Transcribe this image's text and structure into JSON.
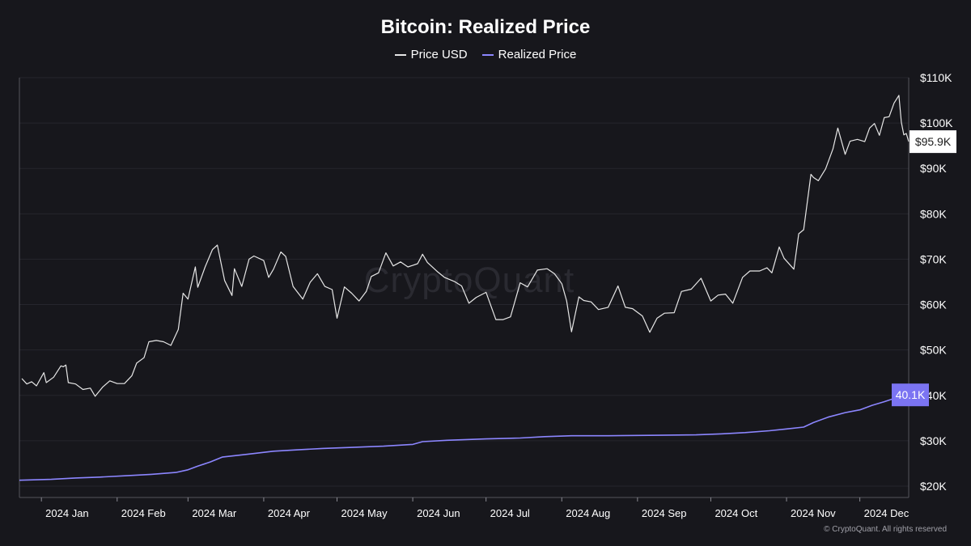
{
  "colors": {
    "background": "#17171c",
    "grid": "#26262d",
    "price_line": "#e6e6e6",
    "realized_line": "#8c86ff",
    "realized_badge": "#7b74f2",
    "price_badge": "#ffffff"
  },
  "watermark": "CryptoQuant",
  "copyright": "© CryptoQuant. All rights reserved",
  "chart_data": {
    "type": "line",
    "title": "Bitcoin: Realized Price",
    "xlabel": "",
    "ylabel": "",
    "x_range": [
      "2023-12-23",
      "2024-12-21"
    ],
    "ylim": [
      17500,
      110000
    ],
    "y_ticks": [
      20000,
      30000,
      40000,
      50000,
      60000,
      70000,
      80000,
      90000,
      100000,
      110000
    ],
    "y_tick_labels": [
      "$20K",
      "$30K",
      "$40K",
      "$50K",
      "$60K",
      "$70K",
      "$80K",
      "$90K",
      "$100K",
      "$110K"
    ],
    "x_ticks": [
      "2024-01-01",
      "2024-02-01",
      "2024-03-01",
      "2024-04-01",
      "2024-05-01",
      "2024-06-01",
      "2024-07-01",
      "2024-08-01",
      "2024-09-01",
      "2024-10-01",
      "2024-11-01",
      "2024-12-01"
    ],
    "x_tick_labels": [
      "2024 Jan",
      "2024 Feb",
      "2024 Mar",
      "2024 Apr",
      "2024 May",
      "2024 Jun",
      "2024 Jul",
      "2024 Aug",
      "2024 Sep",
      "2024 Oct",
      "2024 Nov",
      "2024 Dec"
    ],
    "grid": true,
    "legend": "top-center",
    "series": [
      {
        "name": "Price USD",
        "color": "#e6e6e6",
        "last_value_label": "$95.9K",
        "points": [
          [
            "2023-12-24",
            43700
          ],
          [
            "2023-12-26",
            42500
          ],
          [
            "2023-12-28",
            43000
          ],
          [
            "2023-12-30",
            42100
          ],
          [
            "2024-01-02",
            45000
          ],
          [
            "2024-01-03",
            42800
          ],
          [
            "2024-01-06",
            44000
          ],
          [
            "2024-01-09",
            46500
          ],
          [
            "2024-01-10",
            46300
          ],
          [
            "2024-01-11",
            46700
          ],
          [
            "2024-01-12",
            42800
          ],
          [
            "2024-01-15",
            42500
          ],
          [
            "2024-01-18",
            41300
          ],
          [
            "2024-01-21",
            41600
          ],
          [
            "2024-01-23",
            39800
          ],
          [
            "2024-01-26",
            41800
          ],
          [
            "2024-01-29",
            43200
          ],
          [
            "2024-02-01",
            42600
          ],
          [
            "2024-02-04",
            42600
          ],
          [
            "2024-02-07",
            44300
          ],
          [
            "2024-02-09",
            47100
          ],
          [
            "2024-02-12",
            48300
          ],
          [
            "2024-02-14",
            51800
          ],
          [
            "2024-02-17",
            52100
          ],
          [
            "2024-02-20",
            51800
          ],
          [
            "2024-02-23",
            51000
          ],
          [
            "2024-02-26",
            54500
          ],
          [
            "2024-02-28",
            62500
          ],
          [
            "2024-03-01",
            61200
          ],
          [
            "2024-03-04",
            68300
          ],
          [
            "2024-03-05",
            63800
          ],
          [
            "2024-03-08",
            68300
          ],
          [
            "2024-03-11",
            72100
          ],
          [
            "2024-03-13",
            73100
          ],
          [
            "2024-03-16",
            65300
          ],
          [
            "2024-03-19",
            62000
          ],
          [
            "2024-03-20",
            67900
          ],
          [
            "2024-03-23",
            64000
          ],
          [
            "2024-03-26",
            70000
          ],
          [
            "2024-03-28",
            70700
          ],
          [
            "2024-04-01",
            69700
          ],
          [
            "2024-04-03",
            66000
          ],
          [
            "2024-04-05",
            67800
          ],
          [
            "2024-04-08",
            71600
          ],
          [
            "2024-04-10",
            70600
          ],
          [
            "2024-04-13",
            64000
          ],
          [
            "2024-04-17",
            61200
          ],
          [
            "2024-04-20",
            64900
          ],
          [
            "2024-04-23",
            66800
          ],
          [
            "2024-04-26",
            64000
          ],
          [
            "2024-04-29",
            63300
          ],
          [
            "2024-05-01",
            57000
          ],
          [
            "2024-05-04",
            63900
          ],
          [
            "2024-05-07",
            62500
          ],
          [
            "2024-05-10",
            60800
          ],
          [
            "2024-05-13",
            62900
          ],
          [
            "2024-05-15",
            66200
          ],
          [
            "2024-05-18",
            67000
          ],
          [
            "2024-05-21",
            71400
          ],
          [
            "2024-05-24",
            68500
          ],
          [
            "2024-05-27",
            69400
          ],
          [
            "2024-05-30",
            68300
          ],
          [
            "2024-06-03",
            69000
          ],
          [
            "2024-06-05",
            71100
          ],
          [
            "2024-06-07",
            69300
          ],
          [
            "2024-06-11",
            67300
          ],
          [
            "2024-06-14",
            66000
          ],
          [
            "2024-06-18",
            65100
          ],
          [
            "2024-06-21",
            64100
          ],
          [
            "2024-06-24",
            60300
          ],
          [
            "2024-06-27",
            61600
          ],
          [
            "2024-07-01",
            62700
          ],
          [
            "2024-07-05",
            56700
          ],
          [
            "2024-07-08",
            56700
          ],
          [
            "2024-07-11",
            57300
          ],
          [
            "2024-07-15",
            64800
          ],
          [
            "2024-07-18",
            63900
          ],
          [
            "2024-07-22",
            67600
          ],
          [
            "2024-07-26",
            67900
          ],
          [
            "2024-07-29",
            66800
          ],
          [
            "2024-08-01",
            64600
          ],
          [
            "2024-08-03",
            60800
          ],
          [
            "2024-08-05",
            54000
          ],
          [
            "2024-08-08",
            61700
          ],
          [
            "2024-08-10",
            60900
          ],
          [
            "2024-08-13",
            60600
          ],
          [
            "2024-08-16",
            58900
          ],
          [
            "2024-08-20",
            59400
          ],
          [
            "2024-08-24",
            64100
          ],
          [
            "2024-08-27",
            59400
          ],
          [
            "2024-08-30",
            59100
          ],
          [
            "2024-09-03",
            57500
          ],
          [
            "2024-09-06",
            53900
          ],
          [
            "2024-09-09",
            57000
          ],
          [
            "2024-09-12",
            58100
          ],
          [
            "2024-09-16",
            58200
          ],
          [
            "2024-09-19",
            62900
          ],
          [
            "2024-09-23",
            63400
          ],
          [
            "2024-09-27",
            65800
          ],
          [
            "2024-10-01",
            60800
          ],
          [
            "2024-10-04",
            62100
          ],
          [
            "2024-10-07",
            62300
          ],
          [
            "2024-10-10",
            60300
          ],
          [
            "2024-10-14",
            66000
          ],
          [
            "2024-10-17",
            67400
          ],
          [
            "2024-10-21",
            67400
          ],
          [
            "2024-10-24",
            68100
          ],
          [
            "2024-10-26",
            67000
          ],
          [
            "2024-10-29",
            72700
          ],
          [
            "2024-10-31",
            70200
          ],
          [
            "2024-11-04",
            67800
          ],
          [
            "2024-11-06",
            75600
          ],
          [
            "2024-11-08",
            76500
          ],
          [
            "2024-11-11",
            88700
          ],
          [
            "2024-11-12",
            88000
          ],
          [
            "2024-11-14",
            87300
          ],
          [
            "2024-11-17",
            89900
          ],
          [
            "2024-11-20",
            94300
          ],
          [
            "2024-11-22",
            98900
          ],
          [
            "2024-11-25",
            93100
          ],
          [
            "2024-11-27",
            96000
          ],
          [
            "2024-11-30",
            96400
          ],
          [
            "2024-12-03",
            95900
          ],
          [
            "2024-12-05",
            98900
          ],
          [
            "2024-12-07",
            99900
          ],
          [
            "2024-12-09",
            97300
          ],
          [
            "2024-12-11",
            101200
          ],
          [
            "2024-12-13",
            101400
          ],
          [
            "2024-12-15",
            104400
          ],
          [
            "2024-12-17",
            106100
          ],
          [
            "2024-12-18",
            100200
          ],
          [
            "2024-12-19",
            97400
          ],
          [
            "2024-12-20",
            97700
          ],
          [
            "2024-12-21",
            95900
          ]
        ]
      },
      {
        "name": "Realized Price",
        "color": "#8c86ff",
        "last_value_label": "40.1K",
        "points": [
          [
            "2023-12-23",
            21300
          ],
          [
            "2024-01-05",
            21500
          ],
          [
            "2024-01-15",
            21800
          ],
          [
            "2024-01-25",
            22000
          ],
          [
            "2024-02-05",
            22300
          ],
          [
            "2024-02-15",
            22600
          ],
          [
            "2024-02-25",
            23000
          ],
          [
            "2024-03-01",
            23600
          ],
          [
            "2024-03-05",
            24400
          ],
          [
            "2024-03-10",
            25300
          ],
          [
            "2024-03-15",
            26400
          ],
          [
            "2024-03-25",
            27000
          ],
          [
            "2024-04-05",
            27700
          ],
          [
            "2024-04-15",
            28000
          ],
          [
            "2024-04-25",
            28300
          ],
          [
            "2024-05-05",
            28500
          ],
          [
            "2024-05-20",
            28800
          ],
          [
            "2024-06-01",
            29200
          ],
          [
            "2024-06-05",
            29800
          ],
          [
            "2024-06-15",
            30100
          ],
          [
            "2024-07-01",
            30400
          ],
          [
            "2024-07-15",
            30600
          ],
          [
            "2024-07-25",
            30900
          ],
          [
            "2024-08-05",
            31100
          ],
          [
            "2024-08-20",
            31100
          ],
          [
            "2024-09-10",
            31200
          ],
          [
            "2024-09-25",
            31300
          ],
          [
            "2024-10-05",
            31500
          ],
          [
            "2024-10-15",
            31800
          ],
          [
            "2024-10-25",
            32200
          ],
          [
            "2024-11-01",
            32600
          ],
          [
            "2024-11-08",
            33000
          ],
          [
            "2024-11-12",
            34000
          ],
          [
            "2024-11-18",
            35200
          ],
          [
            "2024-11-25",
            36200
          ],
          [
            "2024-12-01",
            36800
          ],
          [
            "2024-12-06",
            37800
          ],
          [
            "2024-12-11",
            38600
          ],
          [
            "2024-12-16",
            39500
          ],
          [
            "2024-12-21",
            40100
          ]
        ]
      }
    ]
  }
}
